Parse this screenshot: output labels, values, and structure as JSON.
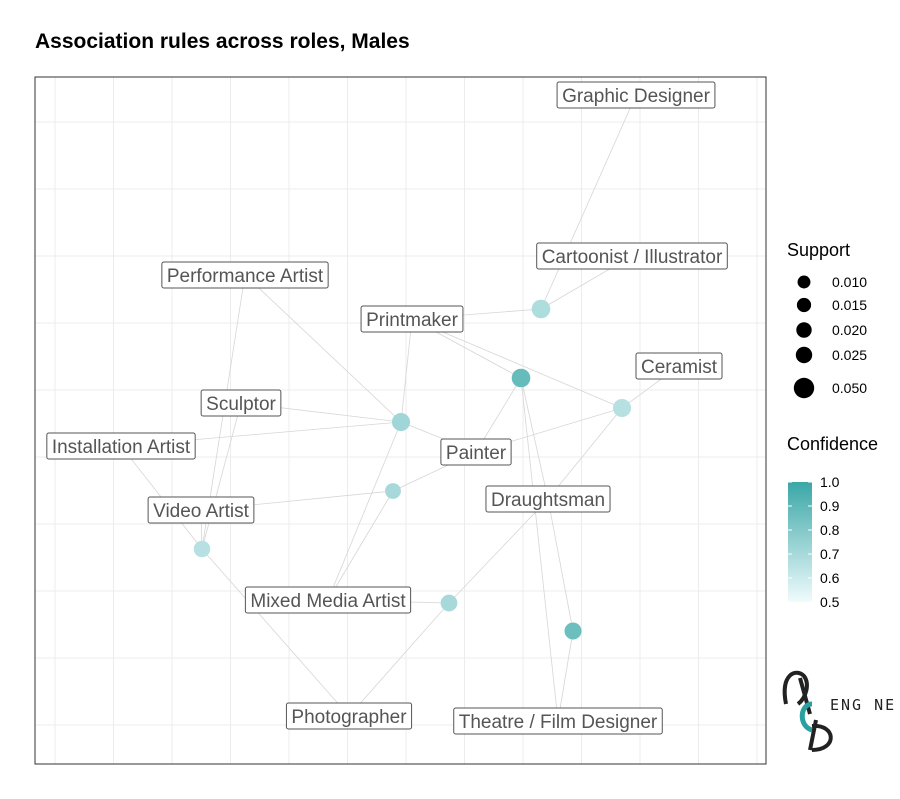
{
  "title": "Association rules across roles, Males",
  "colors": {
    "low": "#f0fbfc",
    "high": "#3aa7a7",
    "edge": "#d6d6d6",
    "grid": "#ececec",
    "label_border": "#555555",
    "label_text": "#555555"
  },
  "chart_data": {
    "type": "network",
    "title": "Association rules across roles, Males",
    "roles": [
      "Graphic Designer",
      "Cartoonist / Illustrator",
      "Performance Artist",
      "Printmaker",
      "Ceramist",
      "Sculptor",
      "Installation Artist",
      "Painter",
      "Draughtsman",
      "Video Artist",
      "Mixed Media Artist",
      "Photographer",
      "Theatre / Film Designer"
    ],
    "rules": [
      {
        "support": 0.022,
        "confidence": 0.68
      },
      {
        "support": 0.022,
        "confidence": 0.88
      },
      {
        "support": 0.02,
        "confidence": 0.72
      },
      {
        "support": 0.02,
        "confidence": 0.66
      },
      {
        "support": 0.012,
        "confidence": 0.7
      },
      {
        "support": 0.014,
        "confidence": 0.66
      },
      {
        "support": 0.015,
        "confidence": 0.7
      },
      {
        "support": 0.016,
        "confidence": 0.86
      }
    ],
    "legend": {
      "support_title": "Support",
      "support_values": [
        "0.010",
        "0.015",
        "0.020",
        "0.025",
        "0.050"
      ],
      "confidence_title": "Confidence",
      "confidence_ticks": [
        "1.0",
        "0.9",
        "0.8",
        "0.7",
        "0.6",
        "0.5"
      ],
      "confidence_range": [
        0.5,
        1.0
      ]
    },
    "grid": true
  },
  "logo": {
    "text": "ENG NE"
  }
}
